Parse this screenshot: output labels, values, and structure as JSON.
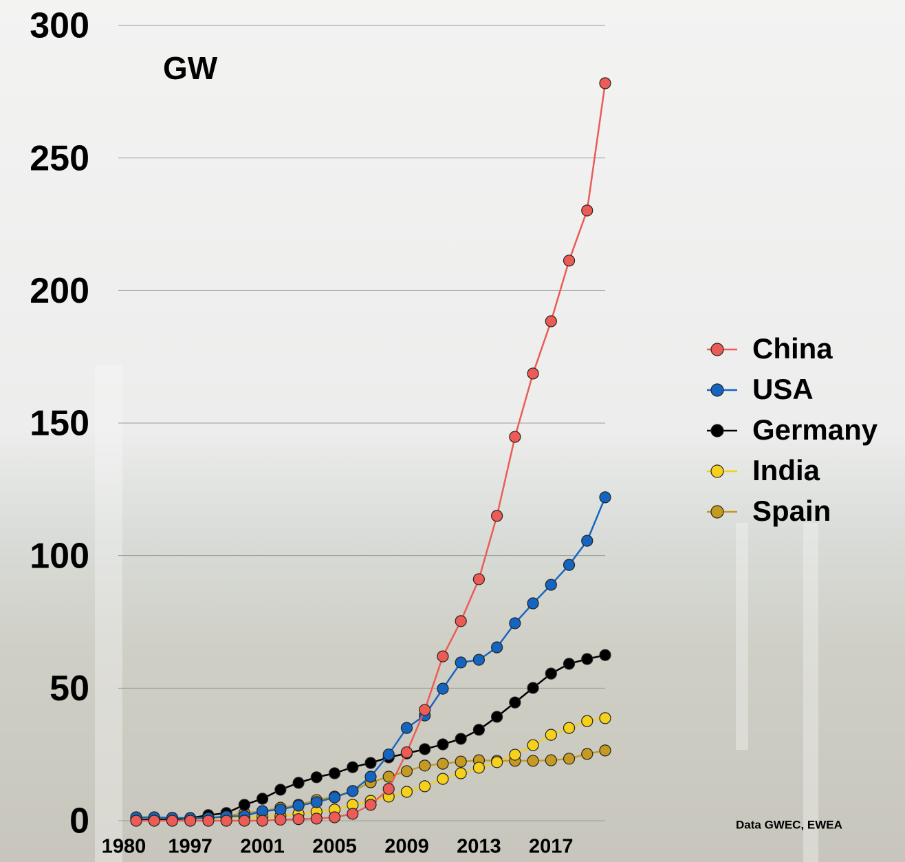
{
  "chart_data": {
    "type": "line",
    "title": "GW",
    "source": "Data  GWEC, EWEA",
    "categories": [
      "1980",
      null,
      null,
      "1997",
      null,
      null,
      null,
      "2001",
      null,
      null,
      null,
      "2005",
      null,
      null,
      null,
      "2009",
      null,
      null,
      null,
      "2013",
      null,
      null,
      null,
      "2017",
      null,
      null,
      null
    ],
    "ylim": [
      0,
      300
    ],
    "yticks": [
      0,
      50,
      100,
      150,
      200,
      250,
      300
    ],
    "grid": true,
    "legend": "right",
    "series": [
      {
        "name": "China",
        "color": "#ec5b55",
        "values": [
          0,
          0,
          0,
          0,
          0,
          0,
          0,
          0,
          0.4,
          0.6,
          0.8,
          1.3,
          2.6,
          6,
          12,
          25.8,
          41.8,
          62,
          75.3,
          91.1,
          115,
          144.8,
          168.7,
          188.4,
          211.3,
          230.2,
          278.2
        ]
      },
      {
        "name": "USA",
        "color": "#1565c0",
        "values": [
          1.3,
          1.3,
          1.1,
          1.0,
          1.0,
          1.6,
          1.8,
          3.6,
          4.2,
          5.7,
          7,
          8.8,
          11.2,
          16.6,
          25,
          35,
          39.7,
          49.8,
          59.7,
          60.7,
          65.4,
          74.5,
          82,
          89,
          96.5,
          105.6,
          122
        ]
      },
      {
        "name": "Germany",
        "color": "#000000",
        "values": [
          0.5,
          0.5,
          0.5,
          1.0,
          2.1,
          2.9,
          6,
          8.3,
          11.7,
          14.3,
          16.4,
          17.9,
          20.2,
          21.8,
          23.9,
          25.4,
          27,
          28.8,
          30.9,
          34.3,
          39.2,
          44.6,
          50.1,
          55.5,
          59.2,
          61,
          62.5
        ]
      },
      {
        "name": "India",
        "color": "#f5d11c",
        "values": [
          0.5,
          0.5,
          0.6,
          0.8,
          1.0,
          1.1,
          1.2,
          1.6,
          1.8,
          2.6,
          3.4,
          4.2,
          6,
          7.5,
          9.1,
          10.9,
          13,
          15.8,
          17.9,
          20,
          22.1,
          24.9,
          28.5,
          32.4,
          35,
          37.6,
          38.7
        ]
      },
      {
        "name": "Spain",
        "color": "#c49a22",
        "values": [
          0.3,
          0.3,
          0.4,
          0.5,
          1.0,
          1.8,
          2.9,
          3.6,
          4.9,
          6,
          7.8,
          9.1,
          11.2,
          14.5,
          16.6,
          18.7,
          20.8,
          21.5,
          22.3,
          22.8,
          22.6,
          22.6,
          22.6,
          22.8,
          23.4,
          25.2,
          26.5
        ]
      }
    ]
  }
}
